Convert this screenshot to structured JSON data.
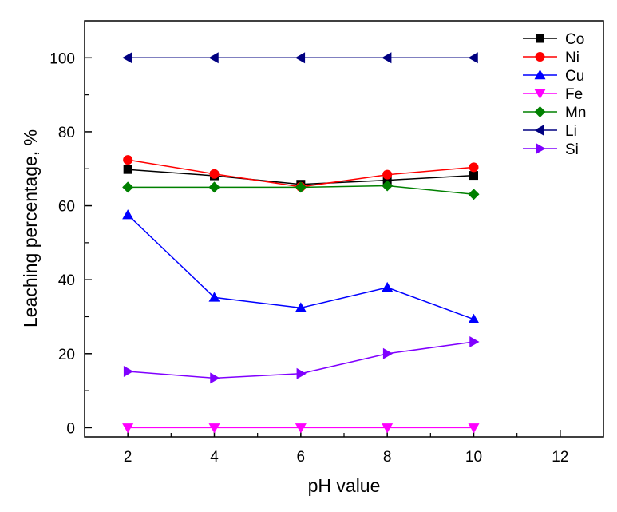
{
  "chart_data": {
    "type": "line",
    "xlabel": "pH value",
    "ylabel": "Leaching percentage, %",
    "xlim": [
      1,
      13
    ],
    "ylim": [
      -2.5,
      110
    ],
    "xticks": [
      2,
      4,
      6,
      8,
      10,
      12
    ],
    "yticks": [
      0,
      20,
      40,
      60,
      80,
      100
    ],
    "x": [
      2,
      4,
      6,
      8,
      10
    ],
    "grid": false,
    "legend_position": "top-right",
    "series": [
      {
        "name": "Co",
        "color": "#000000",
        "marker": "square",
        "values": [
          69.8,
          68.1,
          65.8,
          66.9,
          68.2
        ]
      },
      {
        "name": "Ni",
        "color": "#ff0000",
        "marker": "circle",
        "values": [
          72.4,
          68.6,
          65.1,
          68.4,
          70.4
        ]
      },
      {
        "name": "Cu",
        "color": "#0000ff",
        "marker": "triangle-up",
        "values": [
          57.5,
          35.2,
          32.4,
          37.9,
          29.3
        ]
      },
      {
        "name": "Fe",
        "color": "#ff00ff",
        "marker": "triangle-down",
        "values": [
          0.0,
          0.0,
          0.0,
          0.0,
          0.0
        ]
      },
      {
        "name": "Mn",
        "color": "#008000",
        "marker": "diamond",
        "values": [
          65.0,
          65.0,
          65.0,
          65.4,
          63.1
        ]
      },
      {
        "name": "Li",
        "color": "#000080",
        "marker": "triangle-left",
        "values": [
          100.0,
          100.0,
          100.0,
          100.0,
          100.0
        ]
      },
      {
        "name": "Si",
        "color": "#8000ff",
        "marker": "triangle-right",
        "values": [
          15.2,
          13.4,
          14.6,
          20.0,
          23.2
        ]
      }
    ]
  }
}
